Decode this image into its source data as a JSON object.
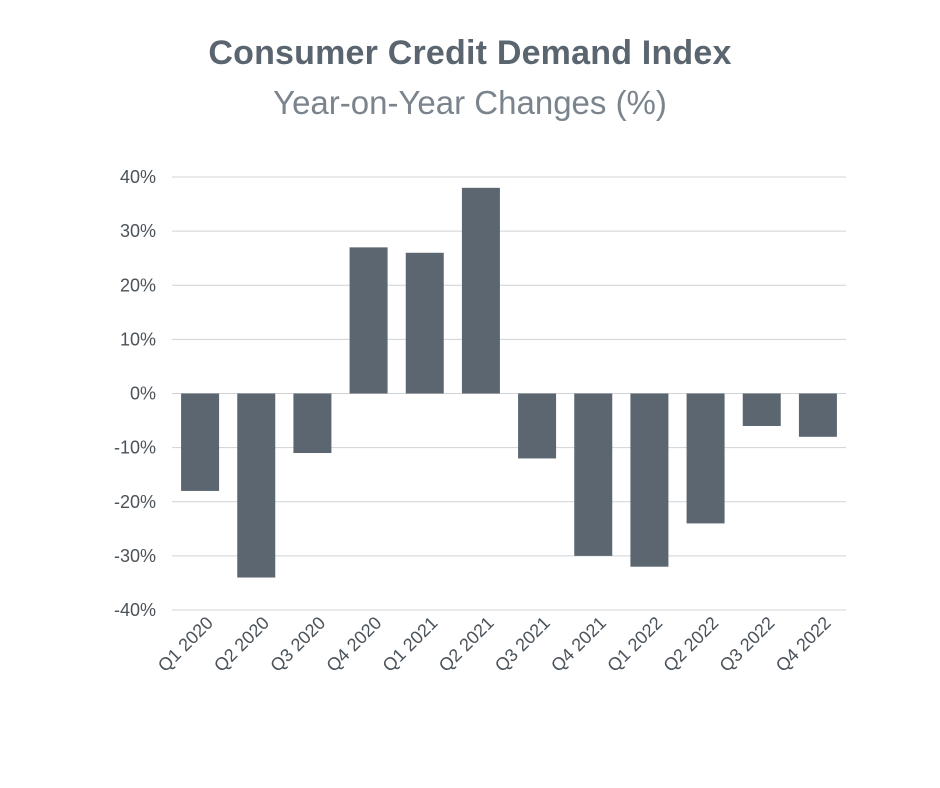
{
  "chart_data": {
    "type": "bar",
    "title": "Consumer Credit Demand Index",
    "subtitle": "Year-on-Year Changes (%)",
    "xlabel": "",
    "ylabel": "",
    "categories": [
      "Q1 2020",
      "Q2 2020",
      "Q3 2020",
      "Q4 2020",
      "Q1 2021",
      "Q2 2021",
      "Q3 2021",
      "Q4 2021",
      "Q1 2022",
      "Q2 2022",
      "Q3 2022",
      "Q4 2022"
    ],
    "values": [
      -18,
      -34,
      -11,
      27,
      26,
      38,
      -12,
      -30,
      -32,
      -24,
      -6,
      -8
    ],
    "ylim": [
      -40,
      40
    ],
    "yticks": [
      40,
      30,
      20,
      10,
      0,
      -10,
      -20,
      -30,
      -40
    ],
    "ytick_labels": [
      "40%",
      "30%",
      "20%",
      "10%",
      "0%",
      "-10%",
      "-20%",
      "-30%",
      "-40%"
    ],
    "grid": true,
    "legend": "none",
    "colors": {
      "bar": "#5b6670",
      "grid": "#cfd3d6",
      "title": "#5a6570",
      "subtitle": "#7b848c",
      "tick_text": "#4a525a"
    }
  }
}
